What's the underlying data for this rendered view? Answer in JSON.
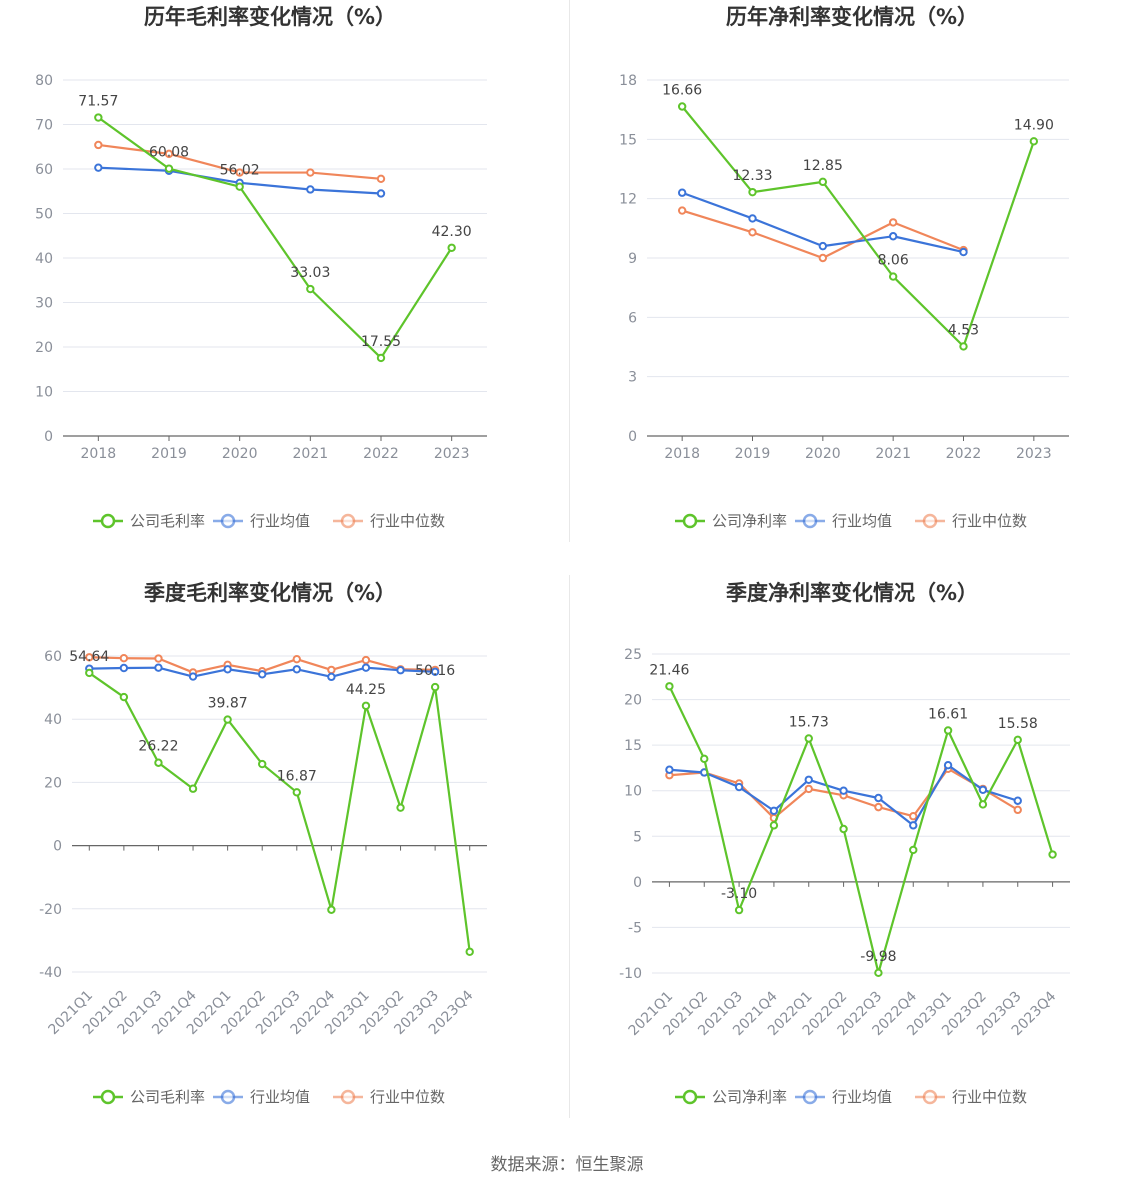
{
  "source": "数据来源：恒生聚源",
  "colors": {
    "company": "#5ec42b",
    "avg": "#3b74d9",
    "median": "#f0865a"
  },
  "legend": {
    "gross": [
      "公司毛利率",
      "行业均值",
      "行业中位数"
    ],
    "net": [
      "公司净利率",
      "行业均值",
      "行业中位数"
    ]
  },
  "chart_data": [
    {
      "type": "line",
      "title": "历年毛利率变化情况（%）",
      "categories": [
        "2018",
        "2019",
        "2020",
        "2021",
        "2022",
        "2023"
      ],
      "yticks": [
        0,
        10,
        20,
        30,
        40,
        50,
        60,
        70,
        80
      ],
      "ylim": [
        0,
        80
      ],
      "grid": true,
      "legend_position": "bottom",
      "series": [
        {
          "name": "公司毛利率",
          "values": [
            71.57,
            60.08,
            56.02,
            33.03,
            17.55,
            42.3
          ],
          "labels": [
            "71.57",
            "60.08",
            "56.02",
            "33.03",
            "17.55",
            "42.30"
          ]
        },
        {
          "name": "行业均值",
          "values": [
            60.3,
            59.6,
            56.9,
            55.4,
            54.5,
            null
          ]
        },
        {
          "name": "行业中位数",
          "values": [
            65.4,
            63.4,
            59.2,
            59.2,
            57.8,
            null
          ]
        }
      ]
    },
    {
      "type": "line",
      "title": "历年净利率变化情况（%）",
      "categories": [
        "2018",
        "2019",
        "2020",
        "2021",
        "2022",
        "2023"
      ],
      "yticks": [
        0,
        3,
        6,
        9,
        12,
        15,
        18
      ],
      "ylim": [
        0,
        18
      ],
      "grid": true,
      "legend_position": "bottom",
      "series": [
        {
          "name": "公司净利率",
          "values": [
            16.66,
            12.33,
            12.85,
            8.06,
            4.53,
            14.9
          ],
          "labels": [
            "16.66",
            "12.33",
            "12.85",
            "8.06",
            "4.53",
            "14.90"
          ]
        },
        {
          "name": "行业均值",
          "values": [
            12.3,
            11.0,
            9.6,
            10.1,
            9.3,
            null
          ]
        },
        {
          "name": "行业中位数",
          "values": [
            11.4,
            10.3,
            9.0,
            10.8,
            9.4,
            null
          ]
        }
      ]
    },
    {
      "type": "line",
      "title": "季度毛利率变化情况（%）",
      "categories": [
        "2021Q1",
        "2021Q2",
        "2021Q3",
        "2021Q4",
        "2022Q1",
        "2022Q2",
        "2022Q3",
        "2022Q4",
        "2023Q1",
        "2023Q2",
        "2023Q3",
        "2023Q4"
      ],
      "yticks": [
        -40,
        -20,
        0,
        20,
        40,
        60
      ],
      "ylim": [
        -40,
        60
      ],
      "grid": true,
      "legend_position": "bottom",
      "series": [
        {
          "name": "公司毛利率",
          "values": [
            54.64,
            47.0,
            26.22,
            18.0,
            39.87,
            25.8,
            16.87,
            -20.3,
            44.25,
            12.0,
            50.16,
            -33.6
          ],
          "labels": [
            "54.64",
            "",
            "26.22",
            "",
            "39.87",
            "",
            "16.87",
            "",
            "44.25",
            "",
            "50.16",
            ""
          ]
        },
        {
          "name": "行业均值",
          "values": [
            56.0,
            56.2,
            56.3,
            53.5,
            55.8,
            54.2,
            55.8,
            53.4,
            56.3,
            55.5,
            55.0,
            null
          ]
        },
        {
          "name": "行业中位数",
          "values": [
            59.6,
            59.3,
            59.2,
            54.8,
            57.2,
            55.2,
            59.0,
            55.6,
            58.7,
            55.8,
            55.6,
            null
          ]
        }
      ]
    },
    {
      "type": "line",
      "title": "季度净利率变化情况（%）",
      "categories": [
        "2021Q1",
        "2021Q2",
        "2021Q3",
        "2021Q4",
        "2022Q1",
        "2022Q2",
        "2022Q3",
        "2022Q4",
        "2023Q1",
        "2023Q2",
        "2023Q3",
        "2023Q4"
      ],
      "yticks": [
        -10,
        -5,
        0,
        5,
        10,
        15,
        20,
        25
      ],
      "ylim": [
        -10,
        25
      ],
      "grid": true,
      "legend_position": "bottom",
      "series": [
        {
          "name": "公司净利率",
          "values": [
            21.46,
            13.5,
            -3.1,
            6.2,
            15.73,
            5.8,
            -9.98,
            3.5,
            16.61,
            8.5,
            15.58,
            3.0
          ],
          "labels": [
            "21.46",
            "",
            "-3.10",
            "",
            "15.73",
            "",
            "-9.98",
            "",
            "16.61",
            "",
            "15.58",
            ""
          ]
        },
        {
          "name": "行业均值",
          "values": [
            12.3,
            12.0,
            10.4,
            7.8,
            11.2,
            10.0,
            9.2,
            6.2,
            12.8,
            10.1,
            8.9,
            null
          ]
        },
        {
          "name": "行业中位数",
          "values": [
            11.7,
            12.0,
            10.8,
            7.0,
            10.2,
            9.5,
            8.2,
            7.2,
            12.4,
            10.2,
            7.9,
            null
          ]
        }
      ]
    }
  ]
}
